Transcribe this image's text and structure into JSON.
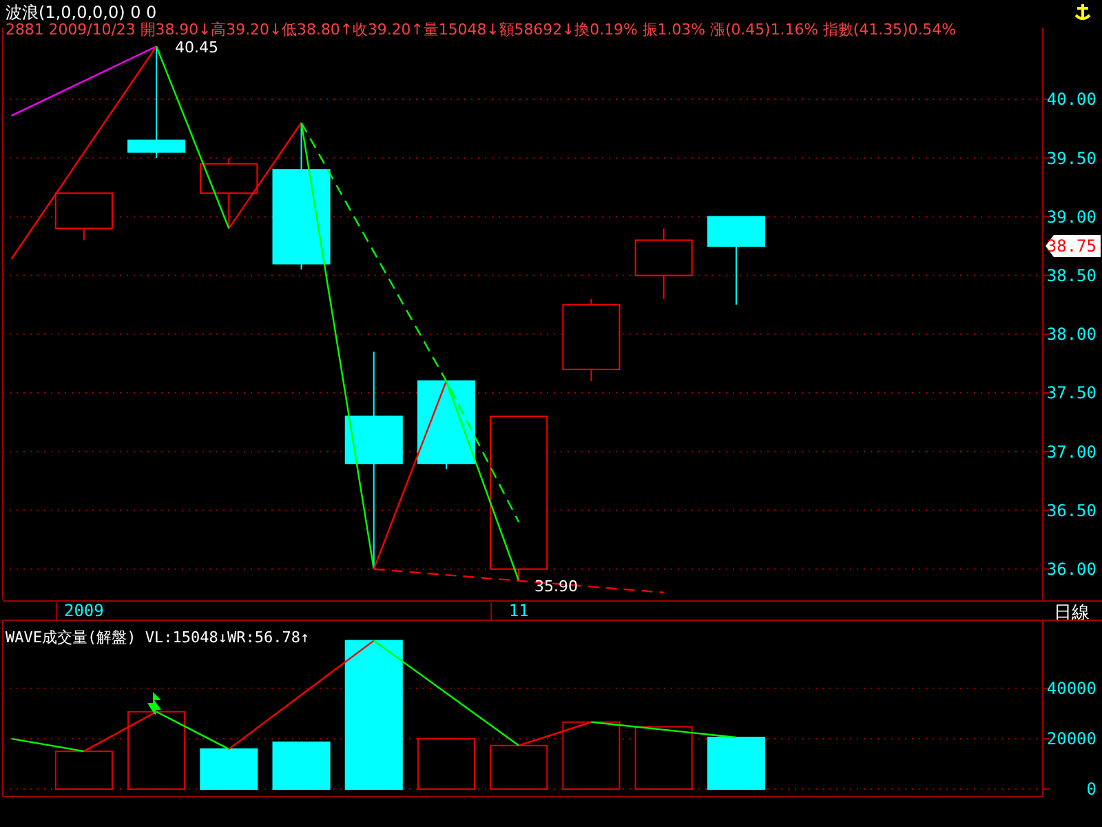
{
  "chart_data": [
    {
      "type": "candlestick",
      "title": "波浪(1,0,0,0,0)  0 0",
      "subtitle": "2881 2009/10/23 開38.90↓高39.20↓低38.80↑收39.20↑量15048↓額58692↓換0.19% 振1.03% 漲(0.45)1.16% 指數(41.35)0.54%",
      "categories": [
        null,
        "2009",
        null,
        null,
        null,
        null,
        null,
        "11",
        null,
        null,
        null,
        null,
        null,
        null,
        null
      ],
      "ohlc": [
        null,
        [
          38.9,
          39.2,
          38.8,
          39.2
        ],
        [
          39.65,
          40.45,
          39.5,
          39.55
        ],
        [
          39.2,
          39.5,
          38.9,
          39.45
        ],
        [
          39.4,
          39.8,
          38.55,
          38.6
        ],
        [
          37.3,
          37.85,
          36.0,
          36.9
        ],
        [
          37.6,
          37.6,
          36.85,
          36.9
        ],
        [
          36.0,
          37.3,
          35.9,
          37.3
        ],
        [
          37.7,
          38.3,
          37.6,
          38.25
        ],
        [
          38.5,
          38.9,
          38.3,
          38.8
        ],
        [
          39.0,
          39.0,
          38.25,
          38.75
        ],
        null,
        null,
        null,
        null
      ],
      "series": [
        {
          "type": "line",
          "color": "#ff00ff",
          "values": [
            39.86,
            null,
            40.45,
            null,
            null,
            null,
            null,
            null,
            null,
            null,
            null,
            null,
            null,
            null,
            null
          ]
        },
        {
          "type": "line",
          "color": "#ff0000",
          "values": [
            38.64,
            null,
            40.45,
            null,
            null,
            null,
            null,
            null,
            null,
            null,
            null,
            null,
            null,
            null,
            null
          ]
        },
        {
          "type": "line",
          "color": "#00ff00",
          "values": [
            null,
            null,
            40.45,
            38.9,
            null,
            null,
            null,
            null,
            null,
            null,
            null,
            null,
            null,
            null,
            null
          ]
        },
        {
          "type": "line",
          "color": "#ff0000",
          "values": [
            null,
            null,
            null,
            38.9,
            39.8,
            null,
            null,
            null,
            null,
            null,
            null,
            null,
            null,
            null,
            null
          ]
        },
        {
          "type": "line",
          "color": "#00ff00",
          "values": [
            null,
            null,
            null,
            null,
            39.8,
            36.0,
            null,
            null,
            null,
            null,
            null,
            null,
            null,
            null,
            null
          ]
        },
        {
          "type": "line",
          "color": "#ff0000",
          "values": [
            null,
            null,
            null,
            null,
            null,
            36.0,
            37.6,
            null,
            null,
            null,
            null,
            null,
            null,
            null,
            null
          ]
        },
        {
          "type": "line",
          "color": "#00ff00",
          "values": [
            null,
            null,
            null,
            null,
            null,
            null,
            37.6,
            35.9,
            null,
            null,
            null,
            null,
            null,
            null,
            null
          ]
        },
        {
          "type": "line",
          "color": "#00ff00",
          "line_style": "dashed",
          "values": [
            null,
            null,
            null,
            null,
            39.8,
            null,
            37.6,
            36.4,
            null,
            null,
            null,
            null,
            null,
            null,
            null
          ]
        },
        {
          "type": "line",
          "color": "#ff0000",
          "line_style": "dashed",
          "values": [
            null,
            null,
            null,
            null,
            null,
            36.0,
            null,
            35.9,
            null,
            35.8,
            null,
            null,
            null,
            null,
            null
          ]
        }
      ],
      "ylim": [
        35.74,
        40.61
      ],
      "yticks": [
        {
          "value": 36,
          "label": "36.00"
        },
        {
          "value": 36.5,
          "label": "36.50"
        },
        {
          "value": 37,
          "label": "37.00"
        },
        {
          "value": 37.5,
          "label": "37.50"
        },
        {
          "value": 38,
          "label": "38.00"
        },
        {
          "value": 38.5,
          "label": "38.50"
        },
        {
          "value": 39,
          "label": "39.00"
        },
        {
          "value": 39.5,
          "label": "39.50"
        },
        {
          "value": 40,
          "label": "40.00"
        }
      ],
      "grid": "y",
      "annotations": [
        "40.45",
        "35.90",
        {
          "text": "38.75",
          "y": 38.75
        },
        "日線"
      ]
    },
    {
      "type": "bar",
      "title": "WAVE成交量(解盤) VL:15048↓WR:56.78↑",
      "categories": [
        null,
        "2009",
        null,
        null,
        null,
        null,
        null,
        "11",
        null,
        null,
        null,
        null,
        null,
        null,
        null
      ],
      "series": [
        {
          "type": "bar",
          "values": [
            null,
            15000,
            30700,
            15900,
            18600,
            58900,
            20000,
            17300,
            26600,
            24700,
            20500,
            null,
            null,
            null,
            null
          ],
          "colors": [
            null,
            "#e00000",
            "#e00000",
            "#00ffff",
            "#00ffff",
            "#00ffff",
            "#e00000",
            "#e00000",
            "#e00000",
            "#e00000",
            "#00ffff",
            null,
            null,
            null,
            null
          ]
        },
        {
          "type": "line",
          "color": "#00ff00",
          "values": [
            20000,
            15000,
            null,
            null,
            null,
            null,
            null,
            null,
            null,
            null,
            null,
            null,
            null,
            null,
            null
          ]
        },
        {
          "type": "line",
          "color": "#ff0000",
          "values": [
            null,
            15000,
            30700,
            null,
            null,
            null,
            null,
            null,
            null,
            null,
            null,
            null,
            null,
            null,
            null
          ]
        },
        {
          "type": "line",
          "color": "#00ff00",
          "values": [
            null,
            null,
            30700,
            15900,
            null,
            null,
            null,
            null,
            null,
            null,
            null,
            null,
            null,
            null,
            null
          ]
        },
        {
          "type": "line",
          "color": "#ff0000",
          "values": [
            null,
            null,
            null,
            15900,
            null,
            58900,
            null,
            null,
            null,
            null,
            null,
            null,
            null,
            null,
            null
          ]
        },
        {
          "type": "line",
          "color": "#00ff00",
          "values": [
            null,
            null,
            null,
            null,
            null,
            58900,
            null,
            17300,
            null,
            null,
            null,
            null,
            null,
            null,
            null
          ]
        },
        {
          "type": "line",
          "color": "#ff0000",
          "values": [
            null,
            null,
            null,
            null,
            null,
            null,
            null,
            17300,
            26600,
            null,
            null,
            null,
            null,
            null,
            null
          ]
        },
        {
          "type": "line",
          "color": "#00ff00",
          "values": [
            null,
            null,
            null,
            null,
            null,
            null,
            null,
            null,
            26600,
            null,
            20500,
            null,
            null,
            null,
            null
          ]
        }
      ],
      "ylim": [
        -3000,
        67000
      ],
      "yticks": [
        0,
        20000,
        40000
      ],
      "grid": "y",
      "tick_labels": "y"
    }
  ]
}
